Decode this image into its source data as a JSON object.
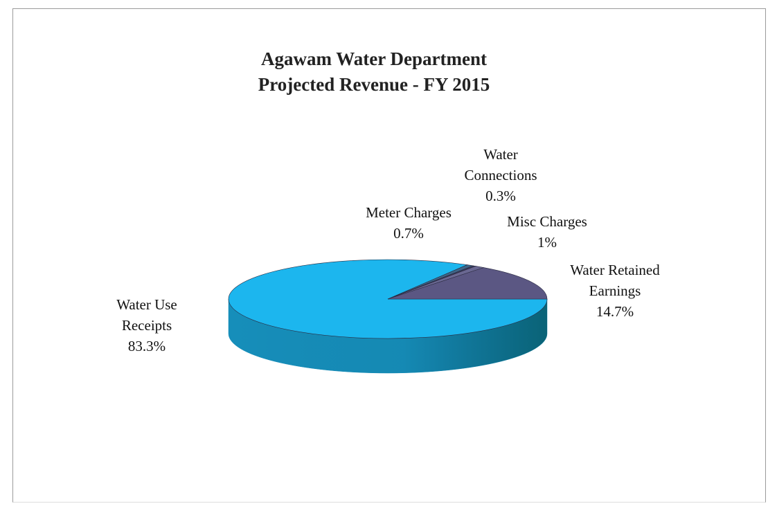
{
  "chart_data": {
    "type": "pie3d",
    "title": "Agawam Water Department",
    "subtitle": "Projected Revenue - FY 2015",
    "categories": [
      "Water Use Receipts",
      "Meter Charges",
      "Water Connections",
      "Misc Charges",
      "Water Retained Earnings"
    ],
    "values": [
      83.3,
      0.7,
      0.3,
      1,
      14.7
    ],
    "value_labels": [
      "83.3%",
      "0.7%",
      "0.3%",
      "1%",
      "14.7%"
    ],
    "colors": [
      "#1cb6ee",
      "#3f6688",
      "#3a3a5c",
      "#6a6892",
      "#5b5783"
    ]
  }
}
